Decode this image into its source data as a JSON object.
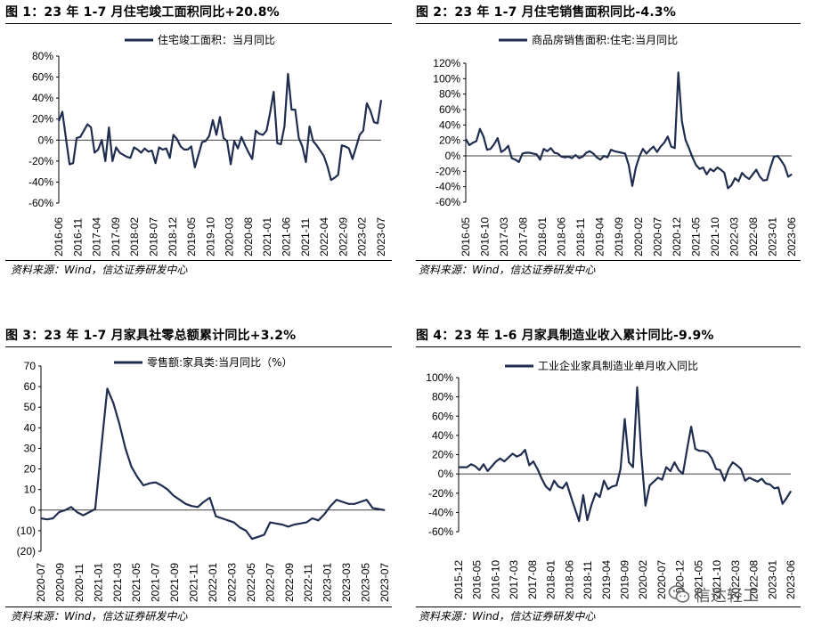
{
  "panels": [
    {
      "title": "图 1：23 年 1-7 月住宅竣工面积同比+20.8%",
      "source": "资料来源：Wind，信达证券研发中心"
    },
    {
      "title": "图 2：23 年 1-7 月住宅销售面积同比-4.3%",
      "source": "资料来源：Wind，信达证券研发中心"
    },
    {
      "title": "图 3：23 年 1-7 月家具社零总额累计同比+3.2%",
      "source": "资料来源：Wind，信达证券研发中心"
    },
    {
      "title": "图 4：23 年 1-6 月家具制造业收入累计同比-9.9%",
      "source": "资料来源：Wind，信达证券研发中心"
    }
  ],
  "watermark": {
    "text": "信达轻工",
    "icon": "wechat-icon"
  },
  "colors": {
    "line": "#1f2d4f",
    "negative_label": "#cc0000",
    "axis": "#000000"
  },
  "chart_data": [
    {
      "type": "line",
      "legend_position": "top",
      "series": [
        {
          "name": "住宅竣工面积：当月同比",
          "values": [
            18,
            27,
            2,
            -23,
            -22,
            2,
            3,
            9,
            15,
            12,
            -12,
            -9,
            0,
            -20,
            12,
            -20,
            -7,
            -12,
            -14,
            -16,
            -17,
            -7,
            -9,
            -12,
            -8,
            -11,
            -10,
            -22,
            -7,
            -9,
            -8,
            -17,
            5,
            1,
            -6,
            -9,
            -9,
            -6,
            -26,
            -14,
            -2,
            -1,
            4,
            19,
            5,
            22,
            2,
            -1,
            -23,
            -1,
            -8,
            3,
            -5,
            -12,
            -18,
            9,
            6,
            5,
            9,
            26,
            46,
            -3,
            -4,
            13,
            63,
            29,
            29,
            2,
            -6,
            -21,
            13,
            -1,
            -5,
            -10,
            -15,
            -25,
            -38,
            -36,
            -33,
            -5,
            -6,
            -8,
            -18,
            -7,
            5,
            9,
            35,
            28,
            17,
            16,
            38
          ]
        }
      ],
      "x_tick_labels": [
        "2016-06",
        "2016-11",
        "2017-04",
        "2017-09",
        "2018-02",
        "2018-07",
        "2018-12",
        "2019-05",
        "2019-10",
        "2020-03",
        "2020-08",
        "2021-01",
        "2021-06",
        "2021-11",
        "2022-04",
        "2022-09",
        "2023-02",
        "2023-07"
      ],
      "y_tick_labels": [
        "80%",
        "60%",
        "40%",
        "20%",
        "0%",
        "-20%",
        "-40%",
        "-60%"
      ],
      "ylim": [
        -60,
        80
      ],
      "grid": false
    },
    {
      "type": "line",
      "legend_position": "top",
      "series": [
        {
          "name": "商品房销售面积:住宅:当月同比",
          "values": [
            22,
            14,
            17,
            19,
            35,
            25,
            8,
            9,
            15,
            23,
            5,
            8,
            13,
            -3,
            -5,
            -8,
            3,
            4,
            4,
            3,
            2,
            -5,
            9,
            6,
            10,
            4,
            3,
            -1,
            -2,
            -1,
            -3,
            1,
            -3,
            -1,
            4,
            6,
            3,
            -2,
            -5,
            0,
            -2,
            8,
            6,
            5,
            4,
            3,
            -12,
            -39,
            -15,
            -1,
            9,
            3,
            8,
            12,
            5,
            12,
            17,
            25,
            12,
            10,
            108,
            45,
            21,
            10,
            -2,
            -12,
            -17,
            -15,
            -24,
            -17,
            -20,
            -15,
            -18,
            -22,
            -42,
            -38,
            -29,
            -33,
            -22,
            -27,
            -30,
            -24,
            -18,
            -27,
            -32,
            -31,
            -15,
            -1,
            0,
            -6,
            -13,
            -27,
            -24
          ]
        }
      ],
      "x_tick_labels": [
        "2016-05",
        "2016-10",
        "2017-03",
        "2017-08",
        "2018-01",
        "2018-06",
        "2018-11",
        "2019-04",
        "2019-09",
        "2020-02",
        "2020-07",
        "2020-12",
        "2021-05",
        "2021-10",
        "2022-03",
        "2022-08",
        "2023-01",
        "2023-06"
      ],
      "y_tick_labels": [
        "120%",
        "100%",
        "80%",
        "60%",
        "40%",
        "20%",
        "0%",
        "-20%",
        "-40%",
        "-60%"
      ],
      "ylim": [
        -60,
        120
      ],
      "grid": false
    },
    {
      "type": "line",
      "legend_position": "top",
      "series": [
        {
          "name": "零售额:家具类:当月同比（%）",
          "values": [
            -4,
            -4.5,
            -4,
            -1,
            0,
            1.5,
            -1,
            -2.5,
            -1,
            0.5,
            30,
            59,
            52,
            42,
            30,
            21,
            16,
            12,
            13,
            13.5,
            12,
            10,
            7,
            5,
            3,
            2,
            1.5,
            4,
            6,
            -3,
            -4,
            -5,
            -6,
            -8.5,
            -10,
            -14,
            -13,
            -12,
            -6,
            -6.5,
            -7,
            -8,
            -7,
            -6.5,
            -6,
            -4,
            -5,
            -2,
            2,
            5,
            4,
            3,
            3,
            4,
            5,
            1,
            0.5,
            0
          ]
        }
      ],
      "x_tick_labels": [
        "2020-07",
        "2020-09",
        "2020-11",
        "2021-01",
        "2021-03",
        "2021-05",
        "2021-07",
        "2021-09",
        "2021-11",
        "2022-01",
        "2022-03",
        "2022-05",
        "2022-07",
        "2022-09",
        "2022-11",
        "2023-01",
        "2023-03",
        "2023-05",
        "2023-07"
      ],
      "y_tick_labels": [
        "70",
        "60",
        "50",
        "40",
        "30",
        "20",
        "10",
        "0",
        "(10)",
        "(20)"
      ],
      "ylim": [
        -20,
        70
      ],
      "grid": false
    },
    {
      "type": "line",
      "legend_position": "top",
      "series": [
        {
          "name": "工业企业家具制造业单月收入同比",
          "values": [
            7,
            7,
            7,
            10,
            8,
            4,
            10,
            3,
            8,
            13,
            16,
            13,
            17,
            21,
            18,
            20,
            25,
            9,
            13,
            5,
            -5,
            -13,
            -17,
            -7,
            -13,
            -15,
            -9,
            -23,
            -36,
            -49,
            -22,
            -48,
            -32,
            -20,
            -24,
            -7,
            -16,
            -13,
            -12,
            5,
            57,
            12,
            7,
            90,
            20,
            -33,
            -12,
            -8,
            -4,
            -6,
            7,
            3,
            12,
            4,
            0,
            25,
            49,
            26,
            24,
            24,
            22,
            16,
            5,
            4,
            -7,
            5,
            12,
            9,
            5,
            -7,
            -4,
            -6,
            -8,
            -5,
            -10,
            -11,
            -15,
            -14,
            -31,
            -25,
            -18
          ]
        }
      ],
      "x_tick_labels": [
        "2015-12",
        "2016-05",
        "2016-10",
        "2017-03",
        "2017-08",
        "2018-01",
        "2018-06",
        "2018-11",
        "2019-04",
        "2019-09",
        "2020-02",
        "2020-07",
        "2020-12",
        "2021-05",
        "2021-10",
        "2022-03",
        "2022-08",
        "2023-01",
        "2023-06"
      ],
      "y_tick_labels": [
        "100%",
        "80%",
        "60%",
        "40%",
        "20%",
        "0%",
        "-20%",
        "-40%",
        "-60%"
      ],
      "ylim": [
        -60,
        100
      ],
      "grid": false
    }
  ]
}
